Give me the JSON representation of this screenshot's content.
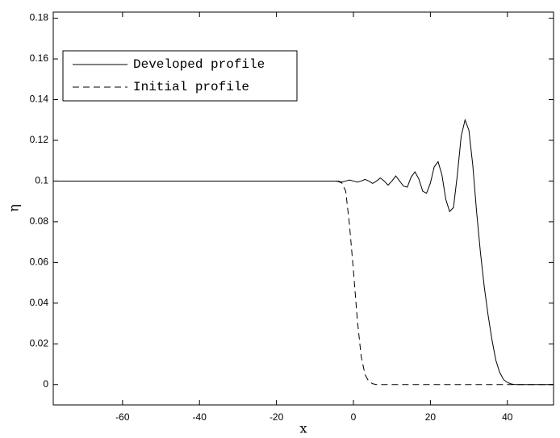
{
  "chart_data": {
    "type": "line",
    "x_label": "x",
    "y_label": "η",
    "x": [
      -78,
      -70,
      -60,
      -50,
      -40,
      -30,
      -20,
      -10,
      -8,
      -6,
      -5,
      -4,
      -3,
      -2,
      -1,
      0,
      1,
      2,
      3,
      4,
      5,
      6,
      7,
      8,
      9,
      10,
      11,
      12,
      13,
      14,
      15,
      16,
      17,
      18,
      19,
      20,
      21,
      22,
      23,
      24,
      25,
      26,
      27,
      28,
      29,
      30,
      31,
      32,
      33,
      34,
      35,
      36,
      37,
      38,
      39,
      40,
      41,
      42,
      44,
      46,
      48,
      50,
      52
    ],
    "series": [
      {
        "name": "Developed profile",
        "color": "#000000",
        "dashed": false,
        "values": [
          0.1,
          0.1,
          0.1,
          0.1,
          0.1,
          0.1,
          0.1,
          0.1,
          0.1,
          0.1,
          0.1,
          0.1,
          0.0995,
          0.1,
          0.1005,
          0.1,
          0.0995,
          0.1,
          0.1008,
          0.1,
          0.0988,
          0.1,
          0.1015,
          0.1,
          0.098,
          0.1,
          0.1025,
          0.1,
          0.0975,
          0.097,
          0.102,
          0.1045,
          0.101,
          0.095,
          0.094,
          0.099,
          0.107,
          0.1095,
          0.103,
          0.091,
          0.085,
          0.087,
          0.103,
          0.122,
          0.13,
          0.125,
          0.108,
          0.085,
          0.065,
          0.048,
          0.034,
          0.022,
          0.012,
          0.006,
          0.0025,
          0.001,
          0.0003,
          0,
          0,
          0,
          0,
          0,
          0
        ]
      },
      {
        "name": "Initial profile",
        "color": "#000000",
        "dashed": true,
        "values": [
          0.1,
          0.1,
          0.1,
          0.1,
          0.1,
          0.1,
          0.1,
          0.1,
          0.1,
          0.1,
          0.1,
          0.0998,
          0.099,
          0.095,
          0.078,
          0.056,
          0.032,
          0.014,
          0.005,
          0.0015,
          0.0004,
          0,
          0,
          0,
          0,
          0,
          0,
          0,
          0,
          0,
          0,
          0,
          0,
          0,
          0,
          0,
          0,
          0,
          0,
          0,
          0,
          0,
          0,
          0,
          0,
          0,
          0,
          0,
          0,
          0,
          0,
          0,
          0,
          0,
          0,
          0,
          0,
          0,
          0,
          0,
          0,
          0,
          0
        ]
      }
    ],
    "xlim": [
      -78,
      52
    ],
    "xticks": [
      -60,
      -40,
      -20,
      0,
      20,
      40
    ],
    "ylim": [
      -0.01,
      0.183
    ],
    "yticks": [
      0,
      0.02,
      0.04,
      0.06,
      0.08,
      0.1,
      0.12,
      0.14,
      0.16,
      0.18
    ],
    "grid": false,
    "legend": "upper left"
  }
}
